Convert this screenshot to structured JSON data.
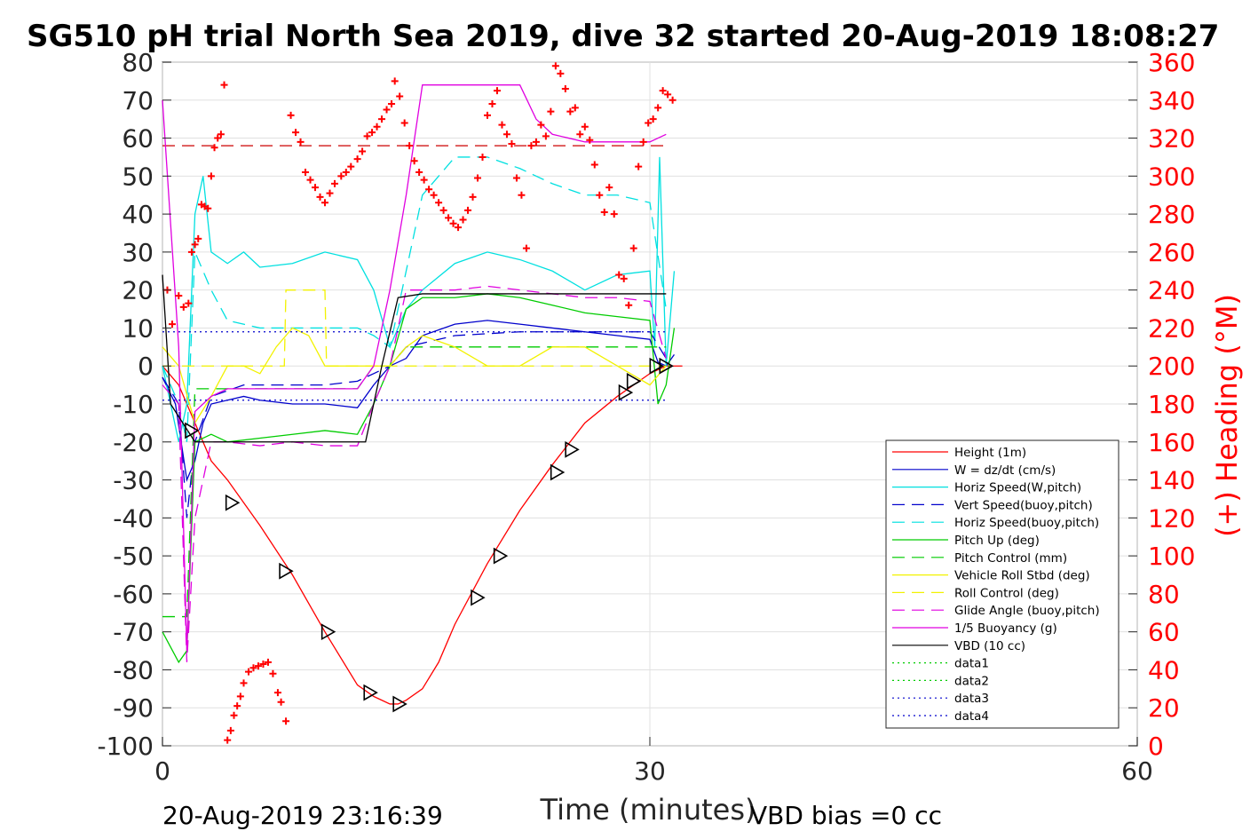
{
  "chart_data": {
    "type": "line",
    "title": "SG510 pH trial North Sea 2019, dive 32 started 20-Aug-2019 18:08:27",
    "xlabel": "Time (minutes)",
    "ylabel": "",
    "ylabel_right": "(+) Heading (°M)",
    "xlim": [
      0,
      60
    ],
    "ylim": [
      -100,
      80
    ],
    "ylim_right": [
      0,
      360
    ],
    "xticks": [
      0,
      30,
      60
    ],
    "yticks": [
      -100,
      -90,
      -80,
      -70,
      -60,
      -50,
      -40,
      -30,
      -20,
      -10,
      0,
      10,
      20,
      30,
      40,
      50,
      60,
      70,
      80
    ],
    "yticks_right": [
      0,
      20,
      40,
      60,
      80,
      100,
      120,
      140,
      160,
      180,
      200,
      220,
      240,
      260,
      280,
      300,
      320,
      340,
      360
    ],
    "grid": true,
    "legend_position": "lower-right",
    "footer_left": "20-Aug-2019 23:16:39",
    "footer_right": "VBD bias =0 cc",
    "colors": {
      "red": "#ff0000",
      "blue": "#0000cc",
      "cyan": "#00e0e0",
      "green": "#00cc00",
      "yellow": "#f2f200",
      "magenta": "#e000e0",
      "black": "#000000",
      "right_axis": "#ff0000"
    },
    "series": [
      {
        "name": "Height (1m)",
        "color": "#ff0000",
        "dash": "solid",
        "x": [
          0,
          1,
          2,
          3,
          4,
          6,
          8,
          10,
          12,
          13,
          14,
          14.5,
          15,
          16,
          17,
          18,
          20,
          22,
          24,
          26,
          28,
          30,
          31,
          32
        ],
        "y": [
          0,
          -5,
          -15,
          -25,
          -30,
          -42,
          -55,
          -70,
          -84,
          -87,
          -89,
          -89,
          -88,
          -85,
          -78,
          -68,
          -52,
          -38,
          -26,
          -15,
          -8,
          -2,
          0,
          0
        ]
      },
      {
        "name": "W = dz/dt (cm/s)",
        "color": "#0000cc",
        "dash": "solid",
        "x": [
          0,
          0.8,
          1.5,
          2,
          2.5,
          3,
          4,
          5,
          6,
          8,
          10,
          12,
          13,
          14,
          15,
          16,
          18,
          20,
          22,
          24,
          26,
          28,
          30,
          30.5,
          31,
          31.5
        ],
        "y": [
          -3,
          -10,
          -30,
          -25,
          -15,
          -10,
          -9,
          -8,
          -9,
          -10,
          -10,
          -11,
          -5,
          0,
          2,
          8,
          11,
          12,
          11,
          10,
          9,
          8,
          7,
          1,
          0,
          3
        ]
      },
      {
        "name": "Horiz Speed(W,pitch)",
        "color": "#00e0e0",
        "dash": "solid",
        "x": [
          0,
          1,
          1.5,
          2,
          2.5,
          3,
          4,
          5,
          6,
          8,
          10,
          12,
          13,
          14,
          15,
          16,
          18,
          20,
          22,
          24,
          26,
          28,
          30,
          30.3,
          30.6,
          31,
          31.5
        ],
        "y": [
          0,
          -20,
          -10,
          40,
          50,
          30,
          27,
          30,
          26,
          27,
          30,
          28,
          20,
          5,
          15,
          20,
          27,
          30,
          28,
          25,
          20,
          24,
          25,
          5,
          55,
          0,
          25
        ]
      },
      {
        "name": "Vert Speed(buoy,pitch)",
        "color": "#0000cc",
        "dash": "dashed",
        "x": [
          0,
          1,
          1.5,
          2,
          3,
          5,
          8,
          10,
          12,
          13,
          14,
          15,
          18,
          22,
          26,
          30,
          31
        ],
        "y": [
          -3,
          -10,
          -40,
          -20,
          -8,
          -5,
          -5,
          -5,
          -4,
          -2,
          0,
          5,
          8,
          9,
          9,
          9,
          2
        ]
      },
      {
        "name": "Horiz Speed(buoy,pitch)",
        "color": "#00e0e0",
        "dash": "dashed",
        "x": [
          0,
          1,
          1.5,
          2,
          3,
          4,
          6,
          8,
          12,
          13,
          14,
          15,
          16,
          18,
          20,
          22,
          24,
          26,
          28,
          30,
          31
        ],
        "y": [
          0,
          -10,
          -20,
          30,
          20,
          12,
          10,
          10,
          10,
          8,
          5,
          25,
          45,
          55,
          55,
          52,
          48,
          45,
          45,
          43,
          15
        ]
      },
      {
        "name": "Pitch Up (deg)",
        "color": "#00cc00",
        "dash": "solid",
        "x": [
          0,
          1,
          1.5,
          2,
          3,
          4,
          6,
          8,
          10,
          12,
          13,
          14,
          15,
          16,
          18,
          20,
          22,
          24,
          26,
          28,
          30,
          30.5,
          31,
          31.5
        ],
        "y": [
          -70,
          -78,
          -75,
          -20,
          -18,
          -20,
          -19,
          -18,
          -17,
          -18,
          -10,
          0,
          15,
          18,
          18,
          19,
          18,
          16,
          14,
          13,
          12,
          -10,
          -5,
          10
        ]
      },
      {
        "name": "Pitch Control (mm)",
        "color": "#00cc00",
        "dash": "dashed",
        "x": [
          0,
          1.5,
          2,
          12,
          13,
          14,
          15,
          31
        ],
        "y": [
          -66,
          -66,
          -6,
          -6,
          0,
          0,
          5,
          5
        ]
      },
      {
        "name": "Vehicle Roll Stbd (deg)",
        "color": "#f2f200",
        "dash": "solid",
        "x": [
          0,
          1,
          2,
          3,
          4,
          5,
          6,
          7,
          8,
          9,
          10,
          11,
          12,
          13,
          14,
          15,
          16,
          18,
          20,
          22,
          24,
          26,
          28,
          30,
          31
        ],
        "y": [
          5,
          0,
          -15,
          -8,
          0,
          0,
          -2,
          5,
          10,
          8,
          0,
          0,
          0,
          0,
          0,
          5,
          8,
          5,
          0,
          0,
          5,
          5,
          0,
          -5,
          0
        ]
      },
      {
        "name": "Roll Control (deg)",
        "color": "#f2f200",
        "dash": "dashed",
        "x": [
          0,
          2,
          4,
          7.5,
          7.6,
          10,
          10.1,
          13,
          14,
          18,
          22,
          26,
          30,
          31
        ],
        "y": [
          0,
          0,
          0,
          0,
          20,
          20,
          0,
          0,
          0,
          0,
          0,
          0,
          0,
          0
        ]
      },
      {
        "name": "Glide Angle (buoy,pitch)",
        "color": "#e000e0",
        "dash": "dashed",
        "x": [
          0,
          1,
          1.5,
          2,
          3,
          4,
          6,
          8,
          10,
          12,
          13,
          14,
          15,
          16,
          18,
          20,
          22,
          24,
          26,
          28,
          30,
          31
        ],
        "y": [
          -5,
          -10,
          -78,
          -40,
          -20,
          -20,
          -21,
          -20,
          -21,
          -21,
          -10,
          0,
          20,
          20,
          20,
          21,
          20,
          19,
          18,
          18,
          17,
          2
        ]
      },
      {
        "name": "1/5 Buoyancy (g)",
        "color": "#e000e0",
        "dash": "solid",
        "x": [
          0,
          1,
          1.5,
          2,
          3,
          4,
          6,
          8,
          10,
          12,
          13,
          14,
          15,
          16,
          22,
          23,
          24,
          25,
          26,
          28,
          30,
          31
        ],
        "y": [
          70,
          5,
          -75,
          -12,
          -8,
          -6,
          -6,
          -6,
          -6,
          -6,
          0,
          20,
          45,
          74,
          74,
          65,
          61,
          60,
          59,
          59,
          59,
          61
        ]
      },
      {
        "name": "VBD (10 cc)",
        "color": "#000000",
        "dash": "solid",
        "x": [
          0,
          0.5,
          2,
          12.5,
          13.5,
          14.5,
          16,
          31
        ],
        "y": [
          24,
          -10,
          -20,
          -20,
          0,
          18,
          19,
          19
        ]
      },
      {
        "name": "data1",
        "color": "#00cc00",
        "dash": "dotted",
        "x": [],
        "y": []
      },
      {
        "name": "data2",
        "color": "#00cc00",
        "dash": "dotted",
        "x": [],
        "y": []
      },
      {
        "name": "data3",
        "color": "#0000cc",
        "dash": "dotted",
        "x": [
          0,
          31
        ],
        "y": [
          9,
          9
        ]
      },
      {
        "name": "data4",
        "color": "#0000cc",
        "dash": "dotted",
        "x": [
          0,
          31
        ],
        "y": [
          -9,
          -9
        ]
      }
    ],
    "reference_lines": [
      {
        "color": "#cc0000",
        "dash": "dashed",
        "x": [
          0,
          31
        ],
        "y": [
          58,
          58
        ]
      }
    ],
    "heading_points": {
      "axis": "right",
      "color": "#ff0000",
      "x": [
        0.3,
        0.6,
        1,
        1.3,
        1.6,
        1.8,
        2,
        2.2,
        2.4,
        2.6,
        2.8,
        3.0,
        3.2,
        3.4,
        3.6,
        3.8,
        4.0,
        4.2,
        4.4,
        4.6,
        4.8,
        5.0,
        5.3,
        5.6,
        5.9,
        6.2,
        6.5,
        6.8,
        7.1,
        7.3,
        7.6,
        7.9,
        8.2,
        8.5,
        8.8,
        9.1,
        9.4,
        9.7,
        10,
        10.3,
        10.6,
        11,
        11.3,
        11.6,
        12,
        12.3,
        12.6,
        12.9,
        13.2,
        13.5,
        13.8,
        14.1,
        14.3,
        14.6,
        14.9,
        15.2,
        15.5,
        15.8,
        16.1,
        16.4,
        16.7,
        17.0,
        17.3,
        17.6,
        17.9,
        18.2,
        18.5,
        18.8,
        19.1,
        19.4,
        19.7,
        20.0,
        20.3,
        20.6,
        20.9,
        21.2,
        21.5,
        21.8,
        22.1,
        22.4,
        22.7,
        23.0,
        23.3,
        23.6,
        23.9,
        24.2,
        24.5,
        24.8,
        25.1,
        25.4,
        25.7,
        26.0,
        26.3,
        26.6,
        26.9,
        27.2,
        27.5,
        27.8,
        28.1,
        28.4,
        28.7,
        29.0,
        29.3,
        29.6,
        29.9,
        30.2,
        30.5,
        30.8,
        31.1,
        31.4
      ],
      "y": [
        240,
        222,
        237,
        231,
        233,
        260,
        264,
        267,
        285,
        284,
        283,
        300,
        315,
        320,
        322,
        348,
        3,
        8,
        16,
        21,
        26,
        33,
        39,
        41,
        42,
        43,
        44,
        38,
        28,
        23,
        13,
        332,
        323,
        318,
        302,
        298,
        294,
        289,
        286,
        291,
        296,
        300,
        302,
        305,
        309,
        313,
        321,
        323,
        326,
        330,
        335,
        338,
        350,
        342,
        328,
        316,
        308,
        302,
        298,
        293,
        290,
        286,
        282,
        278,
        275,
        273,
        277,
        282,
        289,
        299,
        310,
        332,
        338,
        345,
        327,
        322,
        317,
        299,
        290,
        262,
        316,
        318,
        327,
        321,
        334,
        358,
        354,
        346,
        334,
        336,
        322,
        326,
        319,
        306,
        290,
        281,
        294,
        280,
        248,
        246,
        232,
        262,
        305,
        318,
        328,
        330,
        336,
        345,
        343,
        340
      ]
    },
    "height_markers": {
      "x": [
        1.8,
        4.3,
        7.6,
        10.2,
        12.8,
        14.6,
        19.4,
        20.8,
        24.3,
        25.2,
        28.5,
        29.0,
        30.4,
        31.0
      ],
      "y": [
        -17,
        -36,
        -54,
        -70,
        -86,
        -89,
        -61,
        -50,
        -28,
        -22,
        -7,
        -4,
        0,
        0
      ]
    }
  }
}
